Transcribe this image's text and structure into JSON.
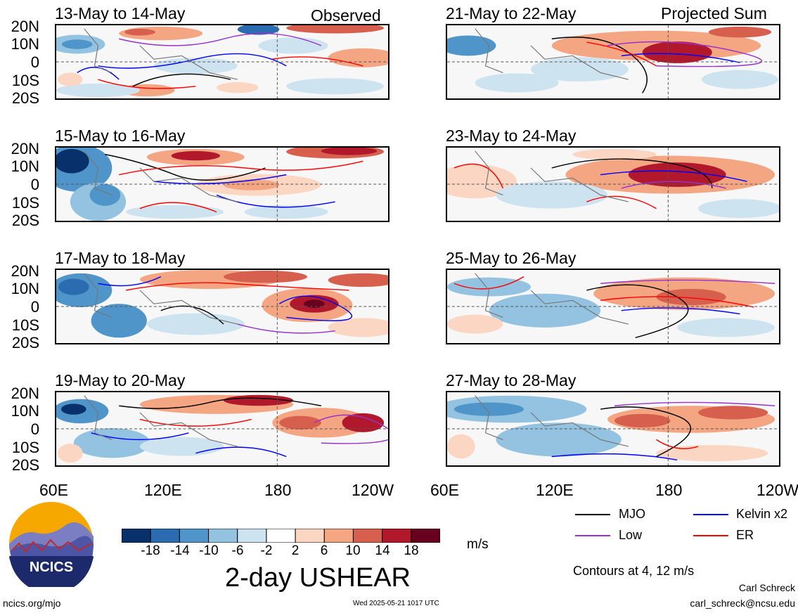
{
  "panel_titles": {
    "p1": "13-May to 14-May",
    "p2": "15-May to 16-May",
    "p3": "17-May to 18-May",
    "p4": "19-May to 20-May",
    "p5": "21-May to 22-May",
    "p6": "23-May to 24-May",
    "p7": "25-May to 26-May",
    "p8": "27-May to 28-May"
  },
  "observed_label": "Observed",
  "projected_label": "Projected Sum",
  "lat_labels": [
    "20N",
    "10N",
    "0",
    "10S",
    "20S"
  ],
  "lon_labels": [
    "60E",
    "120E",
    "180",
    "120W"
  ],
  "colorbar": {
    "labels": [
      "-18",
      "-14",
      "-10",
      "-6",
      "-2",
      "2",
      "6",
      "10",
      "14",
      "18"
    ],
    "colors": [
      "#08306b",
      "#2b6cb0",
      "#4f95c9",
      "#93c3e0",
      "#cde3f0",
      "#ffffff",
      "#fbd6c2",
      "#f4a582",
      "#d6604d",
      "#b2182b",
      "#67001f"
    ],
    "units": "m/s"
  },
  "main_title": "2-day USHEAR",
  "legend": {
    "mjo": "MJO",
    "kelvin": "Kelvin x2",
    "low": "Low",
    "er": "ER",
    "contours": "Contours at 4, 12 m/s",
    "colors": {
      "mjo": "#000000",
      "kelvin": "#0000ff",
      "low": "#9932cc",
      "er": "#ff0000"
    }
  },
  "logo_text": "NCICS",
  "footer": {
    "url": "ncics.org/mjo",
    "timestamp": "Wed 2025-05-21 1017 UTC",
    "author": "Carl Schreck",
    "email": "carl_schreck@ncsu.edu"
  }
}
